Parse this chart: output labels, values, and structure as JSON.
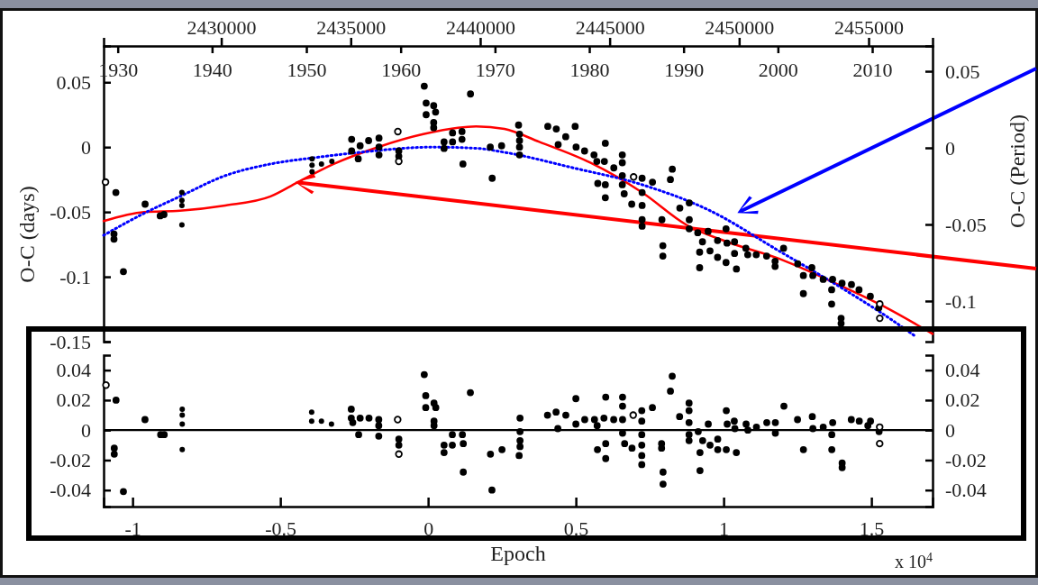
{
  "chart_data": [
    {
      "type": "scatter",
      "ylabel": "O-C (days)",
      "y2label": "O-C (Period)",
      "xlim": [
        1928.5,
        2016.4
      ],
      "xticks": [
        1930,
        1940,
        1950,
        1960,
        1970,
        1980,
        1990,
        2000,
        2010
      ],
      "ylim": [
        -0.15,
        0.078
      ],
      "yticks": [
        0.05,
        0,
        -0.05,
        -0.1,
        -0.15
      ],
      "y2lim": [
        -0.1265,
        0.0665
      ],
      "y2ticks": [
        0.05,
        0,
        -0.05,
        -0.1
      ],
      "x2lim": [
        2425456,
        2457470
      ],
      "x2ticks": [
        2430000,
        2435000,
        2440000,
        2445000,
        2450000,
        2455000
      ],
      "marker": "circle",
      "series": [
        {
          "color": "#000000",
          "x": [
            1929.8,
            1929.6,
            1929.6,
            1930.6,
            1932.9,
            1934.5,
            1934.9,
            1954.8,
            1954.8,
            1955.5,
            1955.7,
            1956.6,
            1957.7,
            1957.7,
            1957.7,
            1959.8,
            1959.8,
            1962.5,
            1962.7,
            1962.7,
            1963.5,
            1963.7,
            1963.5,
            1963.5,
            1964.6,
            1964.6,
            1965.5,
            1965.5,
            1966.5,
            1966.5,
            1966.6,
            1967.4,
            1969.5,
            1969.7,
            1970.7,
            1972.5,
            1972.6,
            1972.6,
            1972.6,
            1972.6,
            1975.6,
            1976.5,
            1976.7,
            1977.5,
            1978.5,
            1978.6,
            1979.5,
            1980.5,
            1980.8,
            1981.6,
            1981.7,
            1980.9,
            1981.7,
            1981.7,
            1982.6,
            1983.5,
            1983.5,
            1983.5,
            1983.5,
            1983.7,
            1984.5,
            1985.6,
            1985.6,
            1985.6,
            1985.6,
            1985.6,
            1986.7,
            1987.7,
            1987.8,
            1987.8,
            1988.8,
            1988.6,
            1989.6,
            1990.6,
            1990.6,
            1990.6,
            1991.5,
            1992.0,
            1991.7,
            1991.7,
            1992.6,
            1992.8,
            1993.6,
            1993.6,
            1994.5,
            1994.6,
            1994.5,
            1995.4,
            1995.4,
            1995.6,
            1996.6,
            1996.8,
            1997.7,
            1998.8,
            1999.7,
            1999.7,
            2000.6,
            2002.1,
            2002.7,
            2002.7,
            2003.6,
            2003.7,
            2004.8,
            2005.8,
            2005.7,
            2005.7,
            2006.8,
            2007.8,
            2008.6,
            2009.8,
            2006.7,
            2006.7,
            2010.7
          ],
          "values": [
            -0.035,
            -0.067,
            -0.071,
            -0.096,
            -0.044,
            -0.053,
            -0.052,
            0.006,
            -0.003,
            -0.009,
            0.001,
            0.005,
            0.007,
            0,
            -0.006,
            -0.003,
            -0.007,
            0.047,
            0.034,
            0.025,
            0.032,
            0.027,
            0.019,
            0.015,
            0.004,
            -0.001,
            0.011,
            0.004,
            0.012,
            0.006,
            -0.013,
            0.041,
            0,
            -0.024,
            0.001,
            0.017,
            0.01,
            0.005,
            0,
            -0.006,
            0.016,
            0.014,
            0.002,
            0.008,
            0.016,
            0,
            -0.003,
            -0.006,
            -0.011,
            -0.011,
            0.003,
            -0.028,
            -0.029,
            -0.039,
            -0.016,
            -0.006,
            -0.012,
            -0.022,
            -0.029,
            -0.036,
            -0.044,
            -0.024,
            -0.035,
            -0.045,
            -0.056,
            -0.061,
            -0.027,
            -0.056,
            -0.076,
            -0.084,
            -0.017,
            -0.025,
            -0.047,
            -0.043,
            -0.056,
            -0.063,
            -0.066,
            -0.073,
            -0.081,
            -0.093,
            -0.065,
            -0.08,
            -0.085,
            -0.072,
            -0.063,
            -0.074,
            -0.089,
            -0.073,
            -0.082,
            -0.094,
            -0.078,
            -0.083,
            -0.083,
            -0.084,
            -0.088,
            -0.092,
            -0.078,
            -0.09,
            -0.099,
            -0.113,
            -0.093,
            -0.099,
            -0.102,
            -0.102,
            -0.11,
            -0.121,
            -0.105,
            -0.106,
            -0.11,
            -0.115,
            -0.132,
            -0.136,
            -0.124
          ]
        },
        {
          "color": "#000000",
          "x": [
            1936.8,
            1936.8,
            1936.8,
            1936.8,
            1950.6,
            1950.6,
            1950.6,
            1951.6,
            1952.7
          ],
          "values": [
            -0.035,
            -0.041,
            -0.045,
            -0.06,
            -0.009,
            -0.014,
            -0.019,
            -0.013,
            -0.011
          ]
        },
        {
          "color": "#000000",
          "x": [
            1928.7,
            1959.7,
            1959.8,
            1984.7,
            2010.8,
            2010.8
          ],
          "values": [
            -0.027,
            0.012,
            -0.011,
            -0.023,
            -0.121,
            -0.132
          ]
        },
        {
          "type": "line",
          "color": "#ff0000",
          "line_style": "solid",
          "marker": "none",
          "x": [
            1928.5,
            1932.8,
            1936.6,
            1941.4,
            1946.2,
            1949.1,
            1952.9,
            1957.6,
            1962.4,
            1968.0,
            1971.0,
            1974.7,
            1980.1,
            1985.6,
            1990.3,
            1994.6,
            2000.1,
            2005.5,
            2011.0,
            2016.4
          ],
          "values": [
            -0.057,
            -0.05,
            -0.049,
            -0.045,
            -0.038,
            -0.027,
            -0.013,
            0,
            0.01,
            0.016,
            0.014,
            0.004,
            -0.012,
            -0.035,
            -0.06,
            -0.073,
            -0.086,
            -0.103,
            -0.122,
            -0.144
          ]
        },
        {
          "type": "line",
          "color": "#0000ff",
          "line_style": "dotted",
          "marker": "none",
          "x": [
            1928.5,
            1932.8,
            1936.6,
            1941.4,
            1946.2,
            1951.0,
            1955.7,
            1963.4,
            1968.2,
            1971.0,
            1978.3,
            1985.6,
            1992.8,
            2000.1,
            2007.3,
            2011.0,
            2014.6
          ],
          "values": [
            -0.068,
            -0.051,
            -0.038,
            -0.022,
            -0.013,
            -0.008,
            -0.004,
            0,
            -0.001,
            -0.004,
            -0.016,
            -0.029,
            -0.049,
            -0.08,
            -0.111,
            -0.128,
            -0.146
          ]
        }
      ]
    },
    {
      "type": "scatter",
      "xlabel": "Epoch",
      "xlim": [
        -1.098,
        1.707
      ],
      "xticks": [
        -1,
        -0.5,
        0,
        0.5,
        1,
        1.5
      ],
      "ylim": [
        -0.051,
        0.05
      ],
      "yticks": [
        0.04,
        0.02,
        0,
        -0.02,
        -0.04
      ],
      "y2lim": [
        -0.051,
        0.05
      ],
      "y2ticks": [
        0.04,
        0.02,
        0,
        -0.02,
        -0.04
      ],
      "marker": "circle",
      "ref_lines": [
        {
          "axis": "y",
          "value": 0
        }
      ],
      "annotations": [
        "x 10$^{4}$"
      ],
      "series": [
        {
          "color": "#000000",
          "x": [
            -1.056,
            -1.062,
            -1.062,
            -1.031,
            -0.958,
            -0.905,
            -0.893,
            -0.26,
            -0.26,
            -0.255,
            -0.235,
            -0.23,
            -0.2,
            -0.167,
            -0.167,
            -0.167,
            -0.099,
            -0.099,
            -0.013,
            -0.008,
            -0.008,
            0.02,
            0.026,
            0.02,
            0.02,
            0.054,
            0.054,
            0.082,
            0.082,
            0.116,
            0.119,
            0.119,
            0.143,
            0.211,
            0.216,
            0.25,
            0.311,
            0.311,
            0.311,
            0.311,
            0.308,
            0.404,
            0.433,
            0.439,
            0.466,
            0.5,
            0.5,
            0.53,
            0.563,
            0.572,
            0.601,
            0.595,
            0.573,
            0.601,
            0.601,
            0.628,
            0.658,
            0.658,
            0.658,
            0.658,
            0.665,
            0.69,
            0.723,
            0.723,
            0.723,
            0.723,
            0.723,
            0.723,
            0.759,
            0.79,
            0.79,
            0.795,
            0.795,
            0.826,
            0.82,
            0.851,
            0.883,
            0.883,
            0.883,
            0.883,
            0.883,
            0.914,
            0.929,
            0.92,
            0.92,
            0.948,
            0.954,
            0.98,
            0.98,
            1.009,
            1.012,
            1.009,
            1.036,
            1.038,
            1.043,
            1.076,
            1.082,
            1.111,
            1.146,
            1.175,
            1.175,
            1.204,
            1.25,
            1.27,
            1.3,
            1.302,
            1.337,
            1.369,
            1.366,
            1.366,
            1.401,
            1.401,
            1.432,
            1.459,
            1.497,
            1.488,
            1.526
          ],
          "values": [
            0.02,
            -0.012,
            -0.016,
            -0.041,
            0.007,
            -0.003,
            -0.003,
            0.014,
            0.008,
            0.005,
            -0.003,
            0.008,
            0.008,
            0.007,
            0.003,
            -0.004,
            -0.006,
            -0.01,
            0.037,
            0.023,
            0.015,
            0.018,
            0.015,
            0.006,
            0.003,
            -0.01,
            -0.015,
            -0.003,
            -0.01,
            -0.003,
            -0.009,
            -0.028,
            0.025,
            -0.016,
            -0.04,
            -0.013,
            0.008,
            -0.001,
            -0.007,
            -0.011,
            -0.017,
            0.01,
            0.012,
            0.001,
            0.01,
            0.021,
            0.004,
            0.007,
            0.007,
            0.003,
            0.022,
            0.008,
            -0.013,
            -0.009,
            -0.019,
            0.007,
            0.022,
            0.016,
            0.007,
            -0.002,
            -0.009,
            -0.012,
            0.013,
            0.006,
            -0.003,
            -0.01,
            -0.017,
            -0.023,
            0.015,
            -0.009,
            -0.012,
            -0.028,
            -0.036,
            0.036,
            0.026,
            0.009,
            0.018,
            0.013,
            0.005,
            -0.003,
            -0.007,
            -0.001,
            -0.007,
            -0.015,
            -0.027,
            0.004,
            -0.01,
            -0.006,
            -0.013,
            0.013,
            0.004,
            -0.013,
            0.006,
            0.001,
            -0.015,
            0.004,
            0,
            0.002,
            0.005,
            0.005,
            -0.002,
            0.016,
            0.007,
            -0.013,
            0.009,
            0.001,
            0.002,
            0.005,
            -0.003,
            -0.013,
            -0.022,
            -0.025,
            0.007,
            0.006,
            0.006,
            0.003,
            -0.001
          ]
        },
        {
          "color": "#000000",
          "x": [
            -0.832,
            -0.832,
            -0.832,
            -0.832,
            -0.394,
            -0.394,
            -0.361,
            -0.327
          ],
          "values": [
            0.014,
            0.01,
            0.004,
            -0.013,
            0.012,
            0.006,
            0.006,
            0.004
          ]
        },
        {
          "color": "#000000",
          "x": [
            -1.09,
            -0.103,
            -0.099,
            0.694,
            1.528,
            1.528
          ],
          "values": [
            0.03,
            0.007,
            -0.016,
            0.01,
            0.002,
            -0.009
          ]
        }
      ]
    }
  ]
}
